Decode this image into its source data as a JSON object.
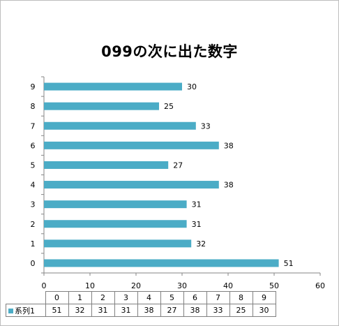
{
  "chart_data": {
    "type": "bar",
    "orientation": "horizontal",
    "title": "099の次に出た数字",
    "categories": [
      "0",
      "1",
      "2",
      "3",
      "4",
      "5",
      "6",
      "7",
      "8",
      "9"
    ],
    "series": [
      {
        "name": "系列1",
        "values": [
          51,
          32,
          31,
          31,
          38,
          27,
          38,
          33,
          25,
          30
        ]
      }
    ],
    "xlim": [
      0,
      60
    ],
    "xticks": [
      "0",
      "10",
      "20",
      "30",
      "40",
      "50",
      "60"
    ],
    "grid": false,
    "legend": "data-table",
    "bar_color": "#4BACC6",
    "data_labels": true
  }
}
